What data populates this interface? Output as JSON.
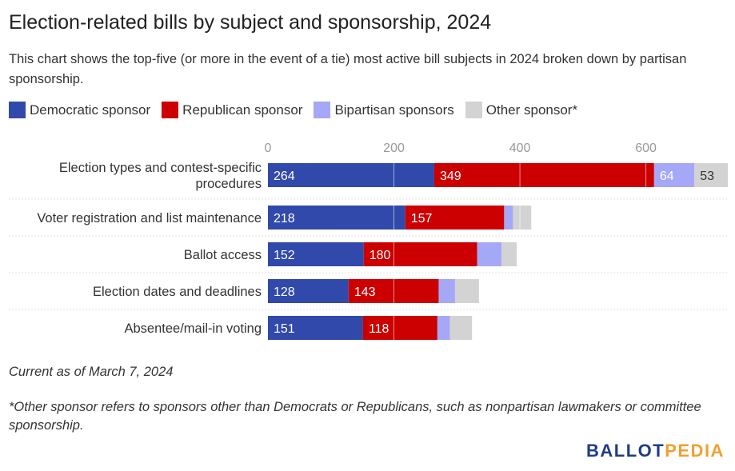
{
  "title": "Election-related bills by subject and sponsorship, 2024",
  "subtitle": "This chart shows the top-five (or more in the event of a tie) most active bill subjects in 2024 broken down by partisan sponsorship.",
  "legend": [
    {
      "label": "Democratic sponsor",
      "color": "#3149ab"
    },
    {
      "label": "Republican sponsor",
      "color": "#cc0000"
    },
    {
      "label": "Bipartisan sponsors",
      "color": "#a5a8f7"
    },
    {
      "label": "Other sponsor*",
      "color": "#d3d3d3"
    }
  ],
  "notes": {
    "current_as_of": "Current as of March 7, 2024",
    "footnote": "*Other sponsor refers to sponsors other than Democrats or Republicans, such as nonpartisan lawmakers or committee sponsorship."
  },
  "logo": {
    "part1": "BALLOT",
    "part2": "PEDIA"
  },
  "chart_data": {
    "type": "bar",
    "orientation": "horizontal",
    "stacked": true,
    "xlim": [
      0,
      730
    ],
    "ticks": [
      0,
      200,
      400,
      600
    ],
    "grid": true,
    "categories": [
      "Election types and contest-specific procedures",
      "Voter registration and list maintenance",
      "Ballot access",
      "Election dates and deadlines",
      "Absentee/mail-in voting"
    ],
    "series": [
      {
        "name": "Democratic sponsor",
        "color": "#3149ab",
        "values": [
          264,
          218,
          152,
          128,
          151
        ],
        "labels": [
          "264",
          "218",
          "152",
          "128",
          "151"
        ],
        "label_color": "#ffffff"
      },
      {
        "name": "Republican sponsor",
        "color": "#cc0000",
        "values": [
          349,
          157,
          180,
          143,
          118
        ],
        "labels": [
          "349",
          "157",
          "180",
          "143",
          "118"
        ],
        "label_color": "#ffffff"
      },
      {
        "name": "Bipartisan sponsors",
        "color": "#a5a8f7",
        "values": [
          64,
          14,
          39,
          26,
          20
        ],
        "labels": [
          "64",
          "",
          "",
          "",
          ""
        ],
        "label_color": "#ffffff"
      },
      {
        "name": "Other sponsor*",
        "color": "#d3d3d3",
        "values": [
          53,
          29,
          24,
          38,
          35
        ],
        "labels": [
          "53",
          "",
          "",
          "",
          ""
        ],
        "label_color": "#333333"
      }
    ]
  }
}
